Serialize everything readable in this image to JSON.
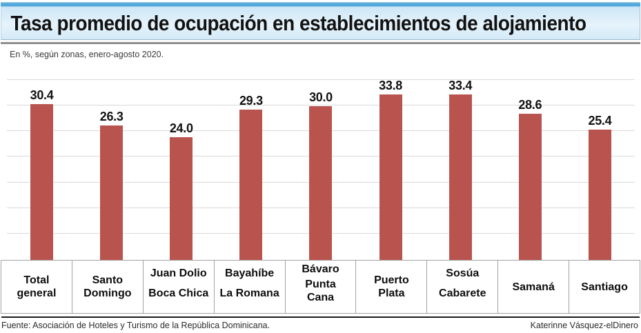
{
  "header": {
    "title": "Tasa promedio de ocupación en establecimientos de alojamiento",
    "subtitle": "En %, según zonas, enero-agosto 2020."
  },
  "chart_data": {
    "type": "bar",
    "title": "Tasa promedio de ocupación en establecimientos de alojamiento",
    "subtitle": "En %, según zonas, enero-agosto 2020.",
    "categories": [
      {
        "names": [
          "Total\ngeneral"
        ]
      },
      {
        "names": [
          "Santo\nDomingo"
        ]
      },
      {
        "names": [
          "Juan Dolio",
          "Boca Chica"
        ]
      },
      {
        "names": [
          "Bayahíbe",
          "La Romana"
        ]
      },
      {
        "names": [
          "Bávaro",
          "Punta\nCana"
        ]
      },
      {
        "names": [
          "Puerto\nPlata"
        ]
      },
      {
        "names": [
          "Sosúa",
          "Cabarete"
        ]
      },
      {
        "names": [
          "Samaná"
        ]
      },
      {
        "names": [
          "Santiago"
        ]
      }
    ],
    "values": [
      30.4,
      26.3,
      24.0,
      29.3,
      30.0,
      33.8,
      33.4,
      28.6,
      25.4
    ],
    "value_labels": [
      "30.4",
      "26.3",
      "24.0",
      "29.3",
      "30.0",
      "33.8",
      "33.4",
      "28.6",
      "25.4"
    ],
    "xlabel": "",
    "ylabel": "",
    "ylim": [
      0,
      35
    ],
    "gridline_step": 5,
    "grid": true,
    "legend": "none",
    "bar_color": "#b9534e",
    "gridline_color": "#d9d9d9"
  },
  "footer": {
    "source": "Fuente: Asociación de Hoteles y Turismo de la República Dominicana.",
    "credit": "Katerinne Vásquez-elDinero"
  },
  "colors": {
    "accent_blue": "#54a9dc",
    "header_bg": "#d9edf9",
    "header_rule": "#8e8e8e",
    "bar": "#b9534e",
    "gridline": "#d9d9d9",
    "cell_border": "#a3a3a3",
    "bottom_rule": "#1a1a1a"
  }
}
